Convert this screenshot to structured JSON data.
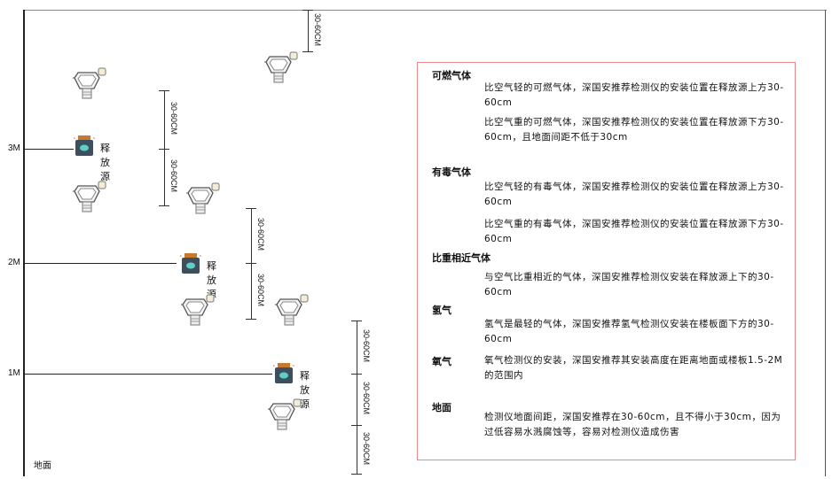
{
  "levels": {
    "m3": "3M",
    "m2": "2M",
    "m1": "1M",
    "ground": "地面"
  },
  "source_label": "释放源",
  "dimension_label": "30-60CM",
  "colors": {
    "box_border": "#e88a8a",
    "source_body": "#3d4f5c",
    "source_face": "#5fd0c8",
    "source_cap": "#c77a2e"
  },
  "icons": {
    "detector": "gas-detector-icon",
    "source": "gas-source-icon"
  },
  "info": {
    "flammable": {
      "title": "可燃气体",
      "light": "比空气轻的可燃气体，深国安推荐检测仪的安装位置在释放源上方30-60cm",
      "heavy": "比空气重的可燃气体，深国安推荐检测仪的安装位置在释放源下方30-60cm，且地面间距不低于30cm"
    },
    "toxic": {
      "title": "有毒气体",
      "light": "比空气轻的有毒气体，深国安推荐检测仪的安装位置在释放源上方30-60cm",
      "heavy": "比空气重的有毒气体，深国安推荐检测仪的安装位置在释放源下方30-60cm"
    },
    "similar": {
      "title": "比重相近气体",
      "text": "与空气比重相近的气体，深国安推荐检测仪安装在释放源上下的30-60cm"
    },
    "hydrogen": {
      "title": "氢气",
      "text": "氢气是最轻的气体，深国安推荐氢气检测仪安装在楼板面下方的30-60cm"
    },
    "oxygen": {
      "title": "氧气",
      "text": "氧气检测仪的安装，深国安推荐其安装高度在距离地面或楼板1.5-2M的范围内"
    },
    "ground": {
      "title": "地面",
      "text": "检测仪地面间距，深国安推荐在30-60cm，且不得小于30cm，因为过低容易水溅腐蚀等，容易对检测仪造成伤害"
    }
  }
}
